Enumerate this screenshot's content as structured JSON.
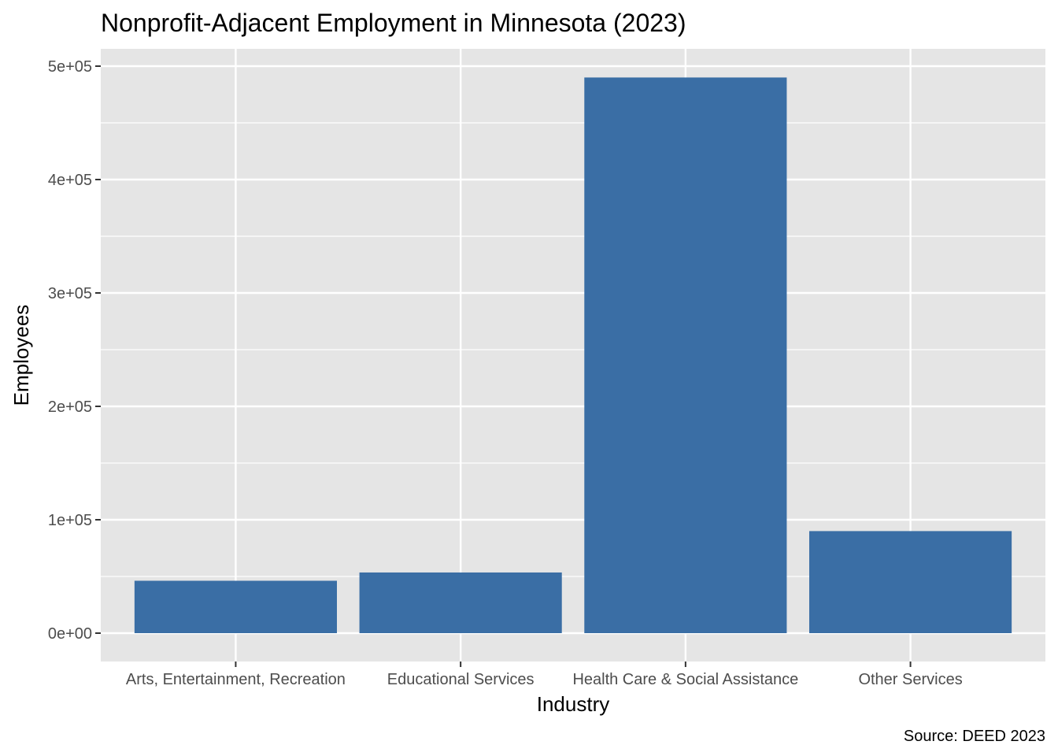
{
  "chart_data": {
    "type": "bar",
    "title": "Nonprofit-Adjacent Employment in Minnesota (2023)",
    "xlabel": "Industry",
    "ylabel": "Employees",
    "caption": "Source: DEED 2023",
    "categories": [
      "Arts, Entertainment, Recreation",
      "Educational Services",
      "Health Care & Social Assistance",
      "Other Services"
    ],
    "values": [
      46200,
      53500,
      490000,
      90000
    ],
    "ylim": [
      0,
      500000
    ],
    "yticks": [
      0,
      100000,
      200000,
      300000,
      400000,
      500000
    ],
    "ytick_labels": [
      "0e+00",
      "1e+05",
      "2e+05",
      "3e+05",
      "4e+05",
      "5e+05"
    ],
    "bar_color": "#3a6ea5",
    "panel_color": "#e5e5e5",
    "grid_color": "#ffffff",
    "grid": true,
    "legend": "none"
  }
}
